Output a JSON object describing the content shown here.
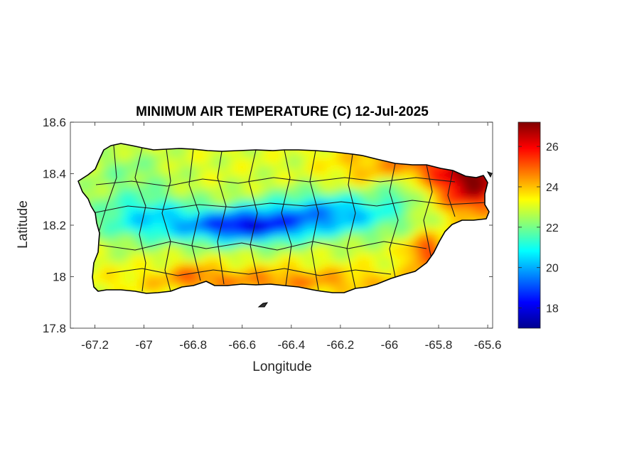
{
  "chart_data": {
    "type": "heatmap",
    "title": "MINIMUM AIR TEMPERATURE (C) 12-Jul-2025",
    "xlabel": "Longitude",
    "ylabel": "Latitude",
    "xlim": [
      -67.3,
      -65.58
    ],
    "ylim": [
      17.8,
      18.6
    ],
    "x_ticks": [
      -67.2,
      -67,
      -66.8,
      -66.6,
      -66.4,
      -66.2,
      -66,
      -65.8,
      -65.6
    ],
    "x_tick_labels": [
      "-67.2",
      "-67",
      "-66.8",
      "-66.6",
      "-66.4",
      "-66.2",
      "-66",
      "-65.8",
      "-65.6"
    ],
    "y_ticks": [
      17.8,
      18,
      18.2,
      18.4,
      18.6
    ],
    "y_tick_labels": [
      "17.8",
      "18",
      "18.2",
      "18.4",
      "18.6"
    ],
    "colorbar": {
      "colormap": "jet",
      "range": [
        17,
        27.2
      ],
      "ticks": [
        18,
        20,
        22,
        24,
        26
      ],
      "tick_labels": [
        "18",
        "20",
        "22",
        "24",
        "26"
      ]
    },
    "grid": false,
    "region": "Puerto Rico"
  }
}
